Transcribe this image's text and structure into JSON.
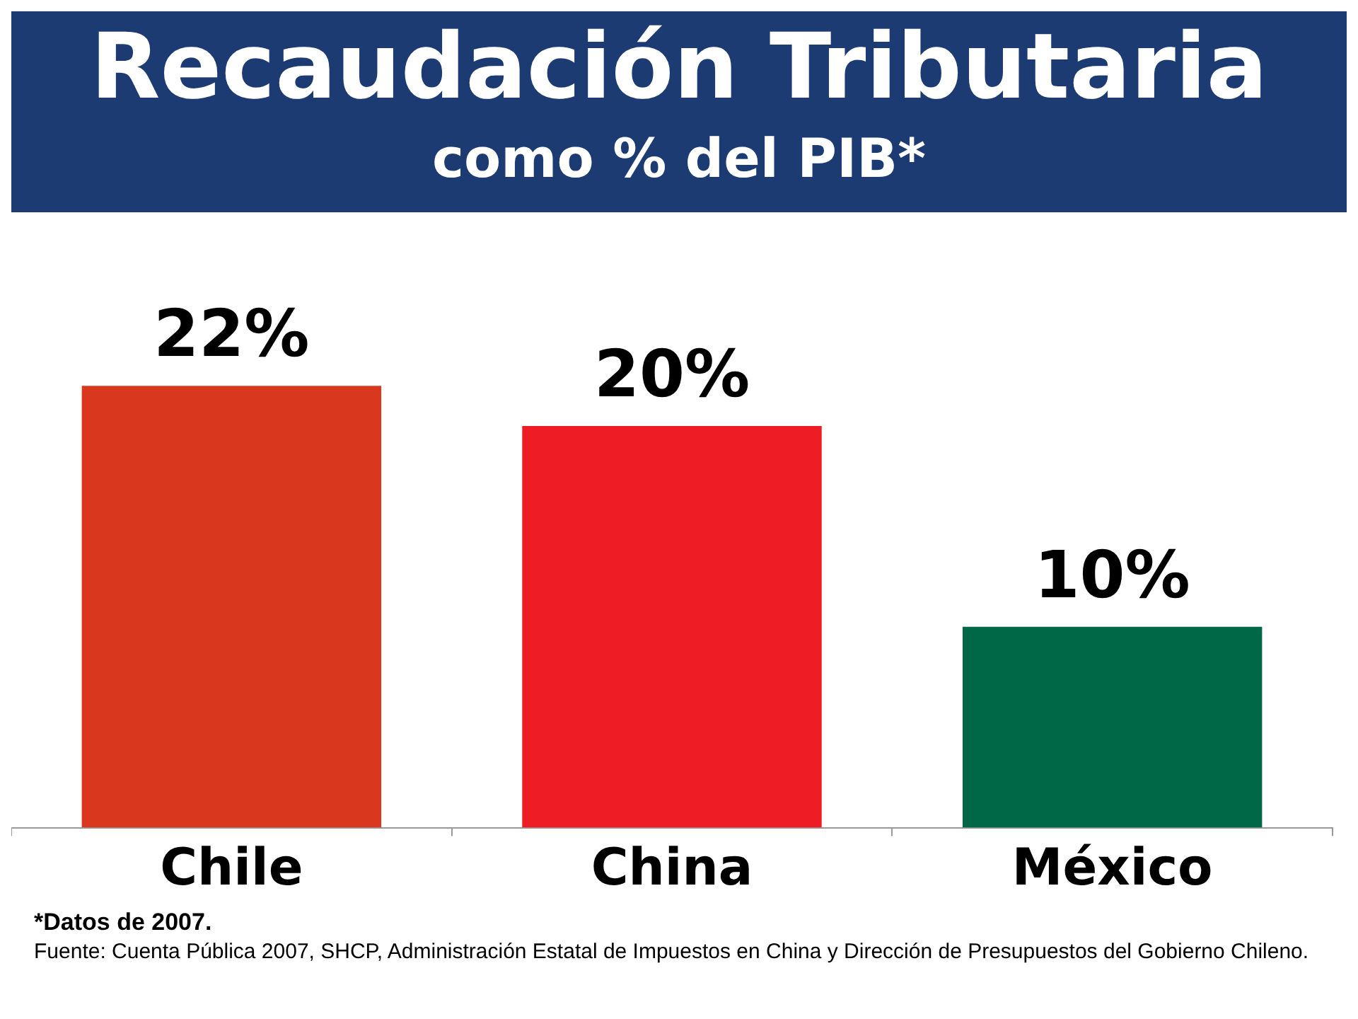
{
  "chart_data": {
    "type": "bar",
    "title": "Recaudación Tributaria",
    "subtitle": "como % del PIB*",
    "categories": [
      "Chile",
      "China",
      "México"
    ],
    "values": [
      22,
      20,
      10
    ],
    "colors": [
      "#d9381e",
      "#ee1c25",
      "#006847"
    ],
    "value_labels": [
      "22%",
      "20%",
      "10%"
    ],
    "tick_labels": "x",
    "annotations": [
      "*Datos de 2007.",
      "Fuente: Cuenta Pública 2007, SHCP, Administración Estatal de Impuestos en China y Dirección de Presupuestos del Gobierno Chileno."
    ]
  }
}
